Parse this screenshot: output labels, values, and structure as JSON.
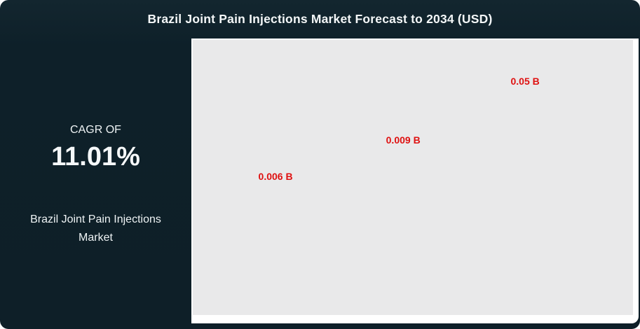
{
  "title": "Brazil Joint Pain Injections Market Forecast to 2034 (USD)",
  "sidebar": {
    "cagr_label": "CAGR OF",
    "cagr_value": "11.01%",
    "market_name": "Brazil Joint Pain Injections Market"
  },
  "colors": {
    "frame_dark": "#0e2029",
    "plot_background": "#e9e9ea",
    "value_label_red": "#df1111",
    "title_text": "#f4f7f8"
  },
  "chart_data": {
    "type": "bar",
    "title": "Brazil Joint Pain Injections Market Forecast to 2034 (USD)",
    "unit": "USD billions",
    "values": [
      0.006,
      0.009,
      0.05
    ],
    "points": [
      {
        "label": "0.006 B",
        "value": 0.006,
        "x_pct": 18.8,
        "y_pct": 49.6
      },
      {
        "label": "0.009 B",
        "value": 0.009,
        "x_pct": 47.8,
        "y_pct": 36.4
      },
      {
        "label": "0.05 B",
        "value": 0.05,
        "x_pct": 75.5,
        "y_pct": 15.0
      }
    ],
    "xlabel": "",
    "ylabel": "",
    "legend": false,
    "grid": false,
    "layout_note": "only red value labels visible on plain gray plot background; axes, ticks and bars not rendered in source image"
  }
}
